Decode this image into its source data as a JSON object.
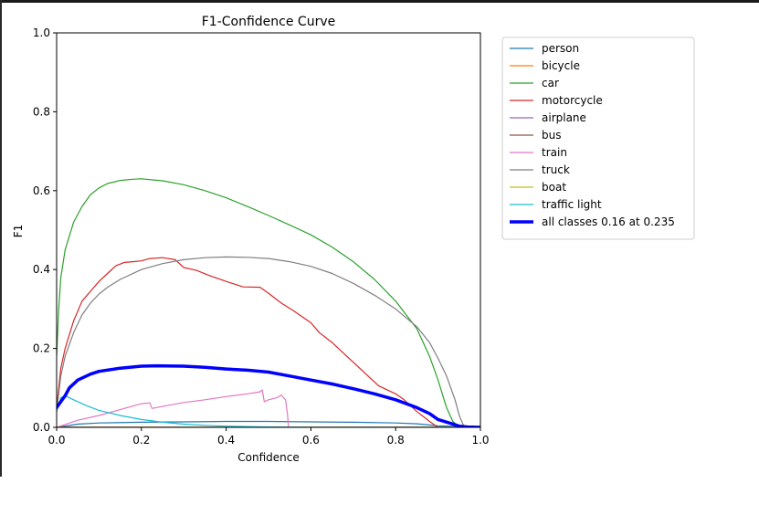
{
  "chart_data": {
    "type": "line",
    "title": "F1-Confidence Curve",
    "xlabel": "Confidence",
    "ylabel": "F1",
    "xlim": [
      0,
      1
    ],
    "ylim": [
      0,
      1
    ],
    "xticks": [
      "0.0",
      "0.2",
      "0.4",
      "0.6",
      "0.8",
      "1.0"
    ],
    "yticks": [
      "0.0",
      "0.2",
      "0.4",
      "0.6",
      "0.8",
      "1.0"
    ],
    "grid": false,
    "legend_placement": "outside-right",
    "series": [
      {
        "name": "person",
        "color": "#1f77b4",
        "width": 1.2,
        "points": [
          [
            0,
            0.0
          ],
          [
            0.05,
            0.008
          ],
          [
            0.1,
            0.011
          ],
          [
            0.2,
            0.013
          ],
          [
            0.3,
            0.014
          ],
          [
            0.4,
            0.015
          ],
          [
            0.5,
            0.015
          ],
          [
            0.6,
            0.014
          ],
          [
            0.7,
            0.013
          ],
          [
            0.8,
            0.011
          ],
          [
            0.85,
            0.009
          ],
          [
            0.88,
            0.006
          ],
          [
            0.9,
            0.004
          ],
          [
            0.95,
            0.002
          ],
          [
            1.0,
            0.0
          ]
        ]
      },
      {
        "name": "bicycle",
        "color": "#ff7f0e",
        "width": 1.2,
        "points": [
          [
            0,
            0.0
          ],
          [
            1.0,
            0.0
          ]
        ]
      },
      {
        "name": "car",
        "color": "#2ca02c",
        "width": 1.2,
        "points": [
          [
            0,
            0.18
          ],
          [
            0.005,
            0.3
          ],
          [
            0.01,
            0.38
          ],
          [
            0.02,
            0.45
          ],
          [
            0.04,
            0.52
          ],
          [
            0.06,
            0.56
          ],
          [
            0.08,
            0.59
          ],
          [
            0.1,
            0.607
          ],
          [
            0.12,
            0.618
          ],
          [
            0.15,
            0.626
          ],
          [
            0.18,
            0.629
          ],
          [
            0.2,
            0.63
          ],
          [
            0.25,
            0.625
          ],
          [
            0.3,
            0.615
          ],
          [
            0.35,
            0.6
          ],
          [
            0.4,
            0.582
          ],
          [
            0.45,
            0.56
          ],
          [
            0.5,
            0.537
          ],
          [
            0.55,
            0.513
          ],
          [
            0.6,
            0.488
          ],
          [
            0.65,
            0.457
          ],
          [
            0.7,
            0.42
          ],
          [
            0.75,
            0.375
          ],
          [
            0.8,
            0.32
          ],
          [
            0.85,
            0.25
          ],
          [
            0.88,
            0.18
          ],
          [
            0.9,
            0.12
          ],
          [
            0.92,
            0.05
          ],
          [
            0.935,
            0.015
          ],
          [
            0.95,
            0.0
          ]
        ]
      },
      {
        "name": "motorcycle",
        "color": "#d62728",
        "width": 1.2,
        "points": [
          [
            0,
            0.05
          ],
          [
            0.01,
            0.15
          ],
          [
            0.02,
            0.2
          ],
          [
            0.04,
            0.27
          ],
          [
            0.06,
            0.32
          ],
          [
            0.08,
            0.345
          ],
          [
            0.1,
            0.37
          ],
          [
            0.12,
            0.39
          ],
          [
            0.14,
            0.41
          ],
          [
            0.16,
            0.418
          ],
          [
            0.18,
            0.42
          ],
          [
            0.2,
            0.422
          ],
          [
            0.22,
            0.428
          ],
          [
            0.25,
            0.43
          ],
          [
            0.28,
            0.425
          ],
          [
            0.3,
            0.405
          ],
          [
            0.33,
            0.398
          ],
          [
            0.36,
            0.385
          ],
          [
            0.4,
            0.37
          ],
          [
            0.44,
            0.356
          ],
          [
            0.48,
            0.355
          ],
          [
            0.5,
            0.34
          ],
          [
            0.53,
            0.315
          ],
          [
            0.56,
            0.295
          ],
          [
            0.6,
            0.265
          ],
          [
            0.62,
            0.24
          ],
          [
            0.65,
            0.215
          ],
          [
            0.68,
            0.185
          ],
          [
            0.7,
            0.165
          ],
          [
            0.73,
            0.135
          ],
          [
            0.76,
            0.105
          ],
          [
            0.8,
            0.085
          ],
          [
            0.82,
            0.07
          ],
          [
            0.85,
            0.04
          ],
          [
            0.88,
            0.015
          ],
          [
            0.9,
            0.0
          ]
        ]
      },
      {
        "name": "airplane",
        "color": "#9467bd",
        "width": 1.2,
        "points": [
          [
            0,
            0.0
          ],
          [
            1.0,
            0.0
          ]
        ]
      },
      {
        "name": "bus",
        "color": "#8c564b",
        "width": 1.2,
        "points": [
          [
            0,
            0.0
          ],
          [
            1.0,
            0.0
          ]
        ]
      },
      {
        "name": "train",
        "color": "#e377c2",
        "width": 1.2,
        "points": [
          [
            0,
            0.0
          ],
          [
            0.05,
            0.018
          ],
          [
            0.1,
            0.03
          ],
          [
            0.15,
            0.045
          ],
          [
            0.2,
            0.06
          ],
          [
            0.22,
            0.062
          ],
          [
            0.225,
            0.048
          ],
          [
            0.26,
            0.055
          ],
          [
            0.3,
            0.063
          ],
          [
            0.35,
            0.07
          ],
          [
            0.4,
            0.078
          ],
          [
            0.45,
            0.085
          ],
          [
            0.48,
            0.09
          ],
          [
            0.485,
            0.095
          ],
          [
            0.49,
            0.065
          ],
          [
            0.5,
            0.07
          ],
          [
            0.52,
            0.075
          ],
          [
            0.53,
            0.082
          ],
          [
            0.54,
            0.07
          ],
          [
            0.545,
            0.03
          ],
          [
            0.547,
            0.0
          ]
        ]
      },
      {
        "name": "truck",
        "color": "#7f7f7f",
        "width": 1.2,
        "points": [
          [
            0,
            0.04
          ],
          [
            0.01,
            0.13
          ],
          [
            0.02,
            0.18
          ],
          [
            0.04,
            0.24
          ],
          [
            0.06,
            0.285
          ],
          [
            0.08,
            0.315
          ],
          [
            0.1,
            0.338
          ],
          [
            0.12,
            0.355
          ],
          [
            0.15,
            0.375
          ],
          [
            0.2,
            0.4
          ],
          [
            0.25,
            0.415
          ],
          [
            0.3,
            0.425
          ],
          [
            0.35,
            0.43
          ],
          [
            0.4,
            0.432
          ],
          [
            0.45,
            0.431
          ],
          [
            0.5,
            0.428
          ],
          [
            0.55,
            0.42
          ],
          [
            0.6,
            0.408
          ],
          [
            0.65,
            0.39
          ],
          [
            0.7,
            0.365
          ],
          [
            0.75,
            0.335
          ],
          [
            0.8,
            0.3
          ],
          [
            0.85,
            0.255
          ],
          [
            0.88,
            0.215
          ],
          [
            0.9,
            0.175
          ],
          [
            0.92,
            0.13
          ],
          [
            0.94,
            0.07
          ],
          [
            0.95,
            0.03
          ],
          [
            0.96,
            0.005
          ],
          [
            0.97,
            0.0
          ]
        ]
      },
      {
        "name": "boat",
        "color": "#bcbd22",
        "width": 1.2,
        "points": [
          [
            0,
            0.0
          ],
          [
            1.0,
            0.0
          ]
        ]
      },
      {
        "name": "traffic light",
        "color": "#17becf",
        "width": 1.2,
        "points": [
          [
            0,
            0.04
          ],
          [
            0.01,
            0.075
          ],
          [
            0.02,
            0.08
          ],
          [
            0.04,
            0.07
          ],
          [
            0.07,
            0.055
          ],
          [
            0.1,
            0.043
          ],
          [
            0.15,
            0.03
          ],
          [
            0.2,
            0.02
          ],
          [
            0.25,
            0.013
          ],
          [
            0.3,
            0.008
          ],
          [
            0.35,
            0.005
          ],
          [
            0.4,
            0.003
          ],
          [
            0.5,
            0.001
          ],
          [
            0.6,
            0.0
          ],
          [
            1.0,
            0.0
          ]
        ]
      },
      {
        "name": "all classes 0.16 at 0.235",
        "color": "#0000ff",
        "width": 3.5,
        "points": [
          [
            0,
            0.05
          ],
          [
            0.01,
            0.065
          ],
          [
            0.02,
            0.08
          ],
          [
            0.03,
            0.1
          ],
          [
            0.05,
            0.12
          ],
          [
            0.08,
            0.135
          ],
          [
            0.1,
            0.142
          ],
          [
            0.15,
            0.15
          ],
          [
            0.2,
            0.155
          ],
          [
            0.235,
            0.156
          ],
          [
            0.3,
            0.155
          ],
          [
            0.35,
            0.152
          ],
          [
            0.4,
            0.148
          ],
          [
            0.45,
            0.145
          ],
          [
            0.5,
            0.14
          ],
          [
            0.55,
            0.13
          ],
          [
            0.6,
            0.12
          ],
          [
            0.65,
            0.11
          ],
          [
            0.7,
            0.098
          ],
          [
            0.75,
            0.085
          ],
          [
            0.8,
            0.07
          ],
          [
            0.85,
            0.05
          ],
          [
            0.88,
            0.035
          ],
          [
            0.9,
            0.02
          ],
          [
            0.93,
            0.01
          ],
          [
            0.95,
            0.003
          ],
          [
            0.97,
            0.001
          ],
          [
            1.0,
            0.0
          ]
        ]
      }
    ]
  }
}
